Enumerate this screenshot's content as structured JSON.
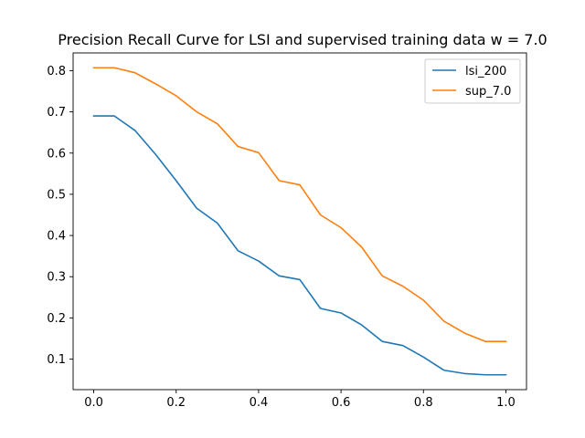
{
  "chart_data": {
    "type": "line",
    "title": "Precision Recall Curve for LSI and supervised training data w = 7.0",
    "xlabel": "",
    "ylabel": "",
    "xlim": [
      -0.05,
      1.05
    ],
    "ylim": [
      0.026,
      0.843
    ],
    "xticks": [
      0.0,
      0.2,
      0.4,
      0.6,
      0.8,
      1.0
    ],
    "xtick_labels": [
      "0.0",
      "0.2",
      "0.4",
      "0.6",
      "0.8",
      "1.0"
    ],
    "yticks": [
      0.1,
      0.2,
      0.3,
      0.4,
      0.5,
      0.6,
      0.7,
      0.8
    ],
    "ytick_labels": [
      "0.1",
      "0.2",
      "0.3",
      "0.4",
      "0.5",
      "0.6",
      "0.7",
      "0.8"
    ],
    "grid": false,
    "legend_position": "top-right",
    "x": [
      0.0,
      0.05,
      0.1,
      0.15,
      0.2,
      0.25,
      0.3,
      0.35,
      0.4,
      0.45,
      0.5,
      0.55,
      0.6,
      0.65,
      0.7,
      0.75,
      0.8,
      0.85,
      0.9,
      0.95,
      1.0
    ],
    "series": [
      {
        "name": "lsi_200",
        "color": "#1f77b4",
        "values": [
          0.69,
          0.69,
          0.655,
          0.597,
          0.533,
          0.466,
          0.43,
          0.363,
          0.338,
          0.302,
          0.293,
          0.223,
          0.212,
          0.183,
          0.143,
          0.133,
          0.105,
          0.073,
          0.065,
          0.062,
          0.062
        ]
      },
      {
        "name": "sup_7.0",
        "color": "#ff7f0e",
        "values": [
          0.807,
          0.807,
          0.795,
          0.768,
          0.739,
          0.7,
          0.671,
          0.616,
          0.601,
          0.533,
          0.523,
          0.45,
          0.419,
          0.372,
          0.302,
          0.277,
          0.243,
          0.192,
          0.163,
          0.143,
          0.143
        ]
      }
    ]
  }
}
